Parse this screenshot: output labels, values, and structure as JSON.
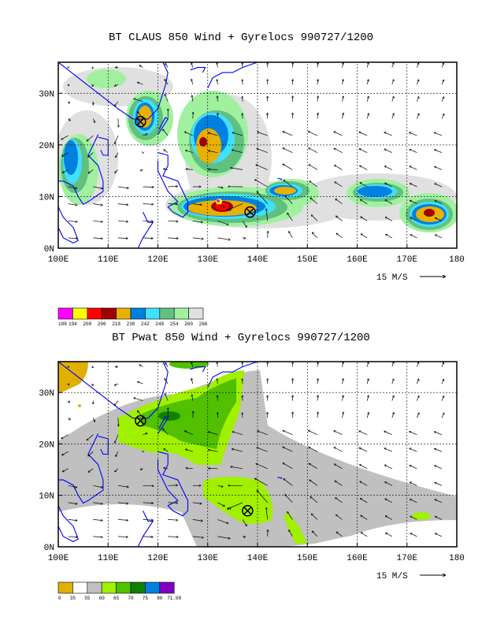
{
  "panels": [
    {
      "title": "BT CLAUS 850 Wind + Gyrelocs 990727/1200",
      "x_ticks": [
        "100E",
        "110E",
        "120E",
        "130E",
        "140E",
        "150E",
        "160E",
        "170E",
        "180"
      ],
      "y_ticks": [
        "0N",
        "10N",
        "20N",
        "30N"
      ],
      "vector_ref_label": "15 M/S",
      "colorbar_labels": [
        "188",
        "194",
        "200",
        "206",
        "218",
        "230",
        "242",
        "248",
        "254",
        "260",
        "266"
      ],
      "colorbar_colors": [
        "#ff00ff",
        "#ffff00",
        "#ff0000",
        "#a00000",
        "#e8b000",
        "#0080e0",
        "#40e0ff",
        "#60c080",
        "#a0f0a0",
        "#e0e0e0"
      ],
      "gyrelocs": [
        {
          "lon": 116.5,
          "lat": 24.5
        },
        {
          "lon": 138.5,
          "lat": 7.0
        }
      ]
    },
    {
      "title": "BT Pwat 850 Wind + Gyrelocs 990727/1200",
      "x_ticks": [
        "100E",
        "110E",
        "120E",
        "130E",
        "140E",
        "150E",
        "160E",
        "170E",
        "180"
      ],
      "y_ticks": [
        "0N",
        "10N",
        "20N",
        "30N"
      ],
      "vector_ref_label": "15 M/S",
      "colorbar_labels": [
        "0",
        "35",
        "55",
        "60",
        "65",
        "70",
        "75",
        "80",
        "71.08"
      ],
      "colorbar_colors": [
        "#e0b000",
        "#ffffff",
        "#c0c0c0",
        "#a0f000",
        "#50c000",
        "#108000",
        "#0080e0",
        "#8000c0"
      ],
      "gyrelocs": [
        {
          "lon": 116.5,
          "lat": 24.5
        },
        {
          "lon": 138.0,
          "lat": 7.0
        }
      ]
    }
  ],
  "map_extent": {
    "lon": [
      100,
      180
    ],
    "lat": [
      0,
      36
    ]
  }
}
